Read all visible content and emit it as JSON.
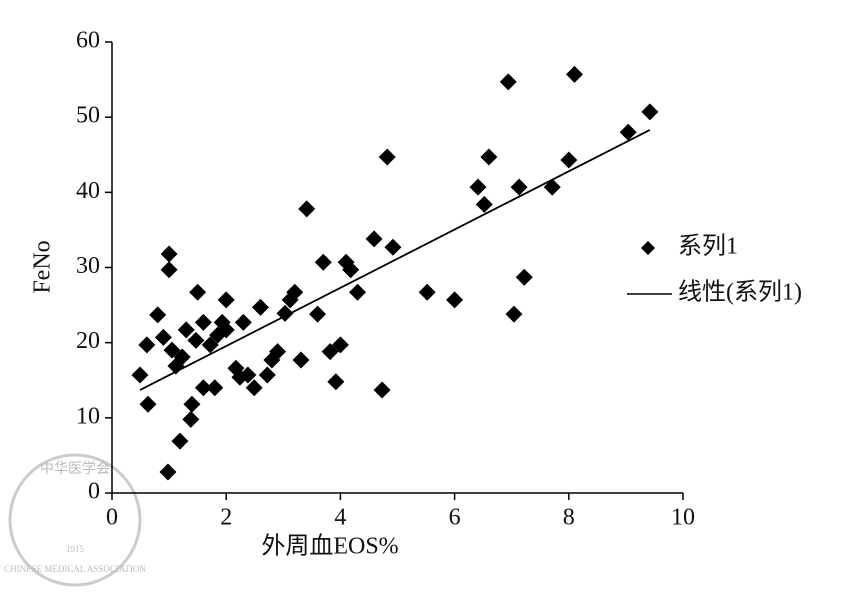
{
  "chart_data": {
    "type": "scatter",
    "xlabel": "外周血EOS%",
    "ylabel": "FeNo",
    "xlim": [
      0,
      10
    ],
    "xticks": [
      0,
      2,
      4,
      6,
      8,
      10
    ],
    "ylim": [
      0,
      60
    ],
    "yticks": [
      0,
      10,
      20,
      30,
      40,
      50,
      60
    ],
    "legend": "right",
    "series": [
      {
        "name": "系列1",
        "color": "#000000",
        "x": [
          0.98,
          1.19,
          1.38,
          1.4,
          0.63,
          0.49,
          0.61,
          0.8,
          0.9,
          1.0,
          1.0,
          1.05,
          1.12,
          1.23,
          1.3,
          1.47,
          1.5,
          1.6,
          1.6,
          1.72,
          1.8,
          1.85,
          1.93,
          2.0,
          2.0,
          2.17,
          2.24,
          2.3,
          2.38,
          2.49,
          2.6,
          2.72,
          2.8,
          2.9,
          3.03,
          3.12,
          3.2,
          3.31,
          3.41,
          3.6,
          3.7,
          3.82,
          3.92,
          4.0,
          4.1,
          4.18,
          4.3,
          4.59,
          4.73,
          4.82,
          4.92,
          5.52,
          6.0,
          6.41,
          6.52,
          6.6,
          6.94,
          7.04,
          7.13,
          7.22,
          7.71,
          8.0,
          8.1,
          9.04,
          9.42
        ],
        "values": [
          2.8,
          6.9,
          9.8,
          11.8,
          11.8,
          15.7,
          19.7,
          23.7,
          20.7,
          31.8,
          29.7,
          19.0,
          16.9,
          18.1,
          21.7,
          20.3,
          26.7,
          22.7,
          14.0,
          19.7,
          14.0,
          21.0,
          22.7,
          25.7,
          21.7,
          16.6,
          15.4,
          22.7,
          15.7,
          14.0,
          24.7,
          15.7,
          17.7,
          18.8,
          23.9,
          25.7,
          26.7,
          17.7,
          37.8,
          23.8,
          30.7,
          18.8,
          14.8,
          19.7,
          30.7,
          29.7,
          26.7,
          33.8,
          13.7,
          44.7,
          32.7,
          26.7,
          25.7,
          40.7,
          38.4,
          44.7,
          54.7,
          23.8,
          40.7,
          28.7,
          40.7,
          44.3,
          55.7,
          48.0,
          50.7
        ]
      },
      {
        "name": "线性(系列1)",
        "type": "line",
        "color": "#000000",
        "x": [
          0.49,
          9.42
        ],
        "values": [
          13.7,
          48.3
        ]
      }
    ],
    "watermark": [
      "中华医学会",
      "CHINESE MEDICAL ASSOCIATION",
      "1915"
    ]
  }
}
